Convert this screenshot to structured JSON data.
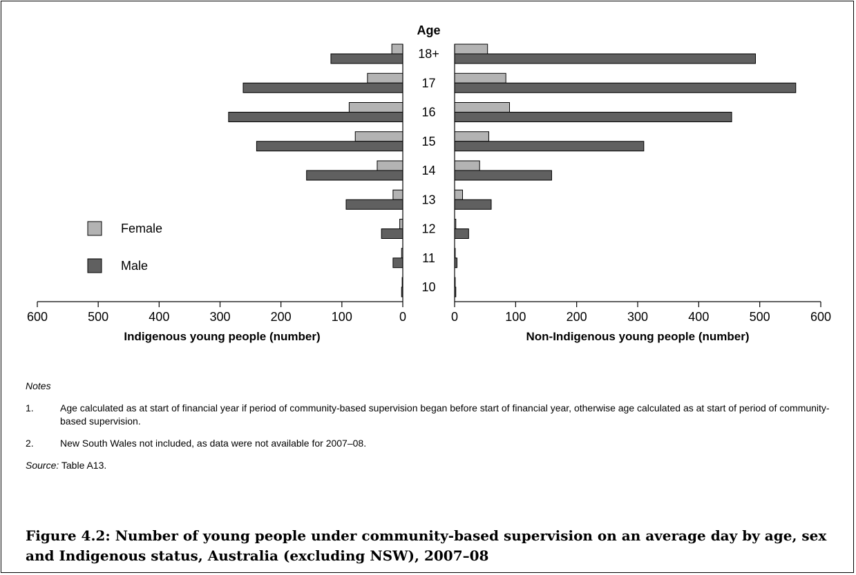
{
  "chart_data": {
    "type": "bar",
    "orientation": "horizontal-pyramid",
    "center_label": "Age",
    "categories": [
      "18+",
      "17",
      "16",
      "15",
      "14",
      "13",
      "12",
      "11",
      "10"
    ],
    "left_panel": {
      "xlabel": "Indigenous young people (number)",
      "xlim": [
        0,
        600
      ],
      "ticks": [
        600,
        500,
        400,
        300,
        200,
        100,
        0
      ],
      "series": [
        {
          "name": "Female",
          "color": "#b3b3b3",
          "values": [
            18,
            58,
            88,
            78,
            42,
            16,
            5,
            2,
            1
          ]
        },
        {
          "name": "Male",
          "color": "#606060",
          "values": [
            118,
            262,
            286,
            240,
            158,
            93,
            35,
            16,
            2
          ]
        }
      ]
    },
    "right_panel": {
      "xlabel": "Non-Indigenous young people (number)",
      "xlim": [
        0,
        600
      ],
      "ticks": [
        0,
        100,
        200,
        300,
        400,
        500,
        600
      ],
      "series": [
        {
          "name": "Female",
          "color": "#b3b3b3",
          "values": [
            54,
            84,
            90,
            56,
            41,
            13,
            2,
            1,
            1
          ]
        },
        {
          "name": "Male",
          "color": "#606060",
          "values": [
            493,
            559,
            454,
            310,
            159,
            60,
            23,
            4,
            2
          ]
        }
      ]
    },
    "legend": {
      "position": "left",
      "entries": [
        {
          "label": "Female",
          "color": "#b3b3b3"
        },
        {
          "label": "Male",
          "color": "#606060"
        }
      ]
    }
  },
  "notes": {
    "heading": "Notes",
    "items": [
      {
        "num": "1.",
        "text": "Age calculated as at start of financial year if period of community-based supervision began before start of financial year, otherwise age calculated as at start of period of community-based supervision."
      },
      {
        "num": "2.",
        "text": "New South Wales not included, as data were not available for 2007–08."
      }
    ]
  },
  "source": {
    "label": "Source:",
    "text": " Table A13."
  },
  "caption": "Figure 4.2: Number of young people under community-based supervision on an average day by age, sex and Indigenous status, Australia (excluding NSW), 2007–08"
}
